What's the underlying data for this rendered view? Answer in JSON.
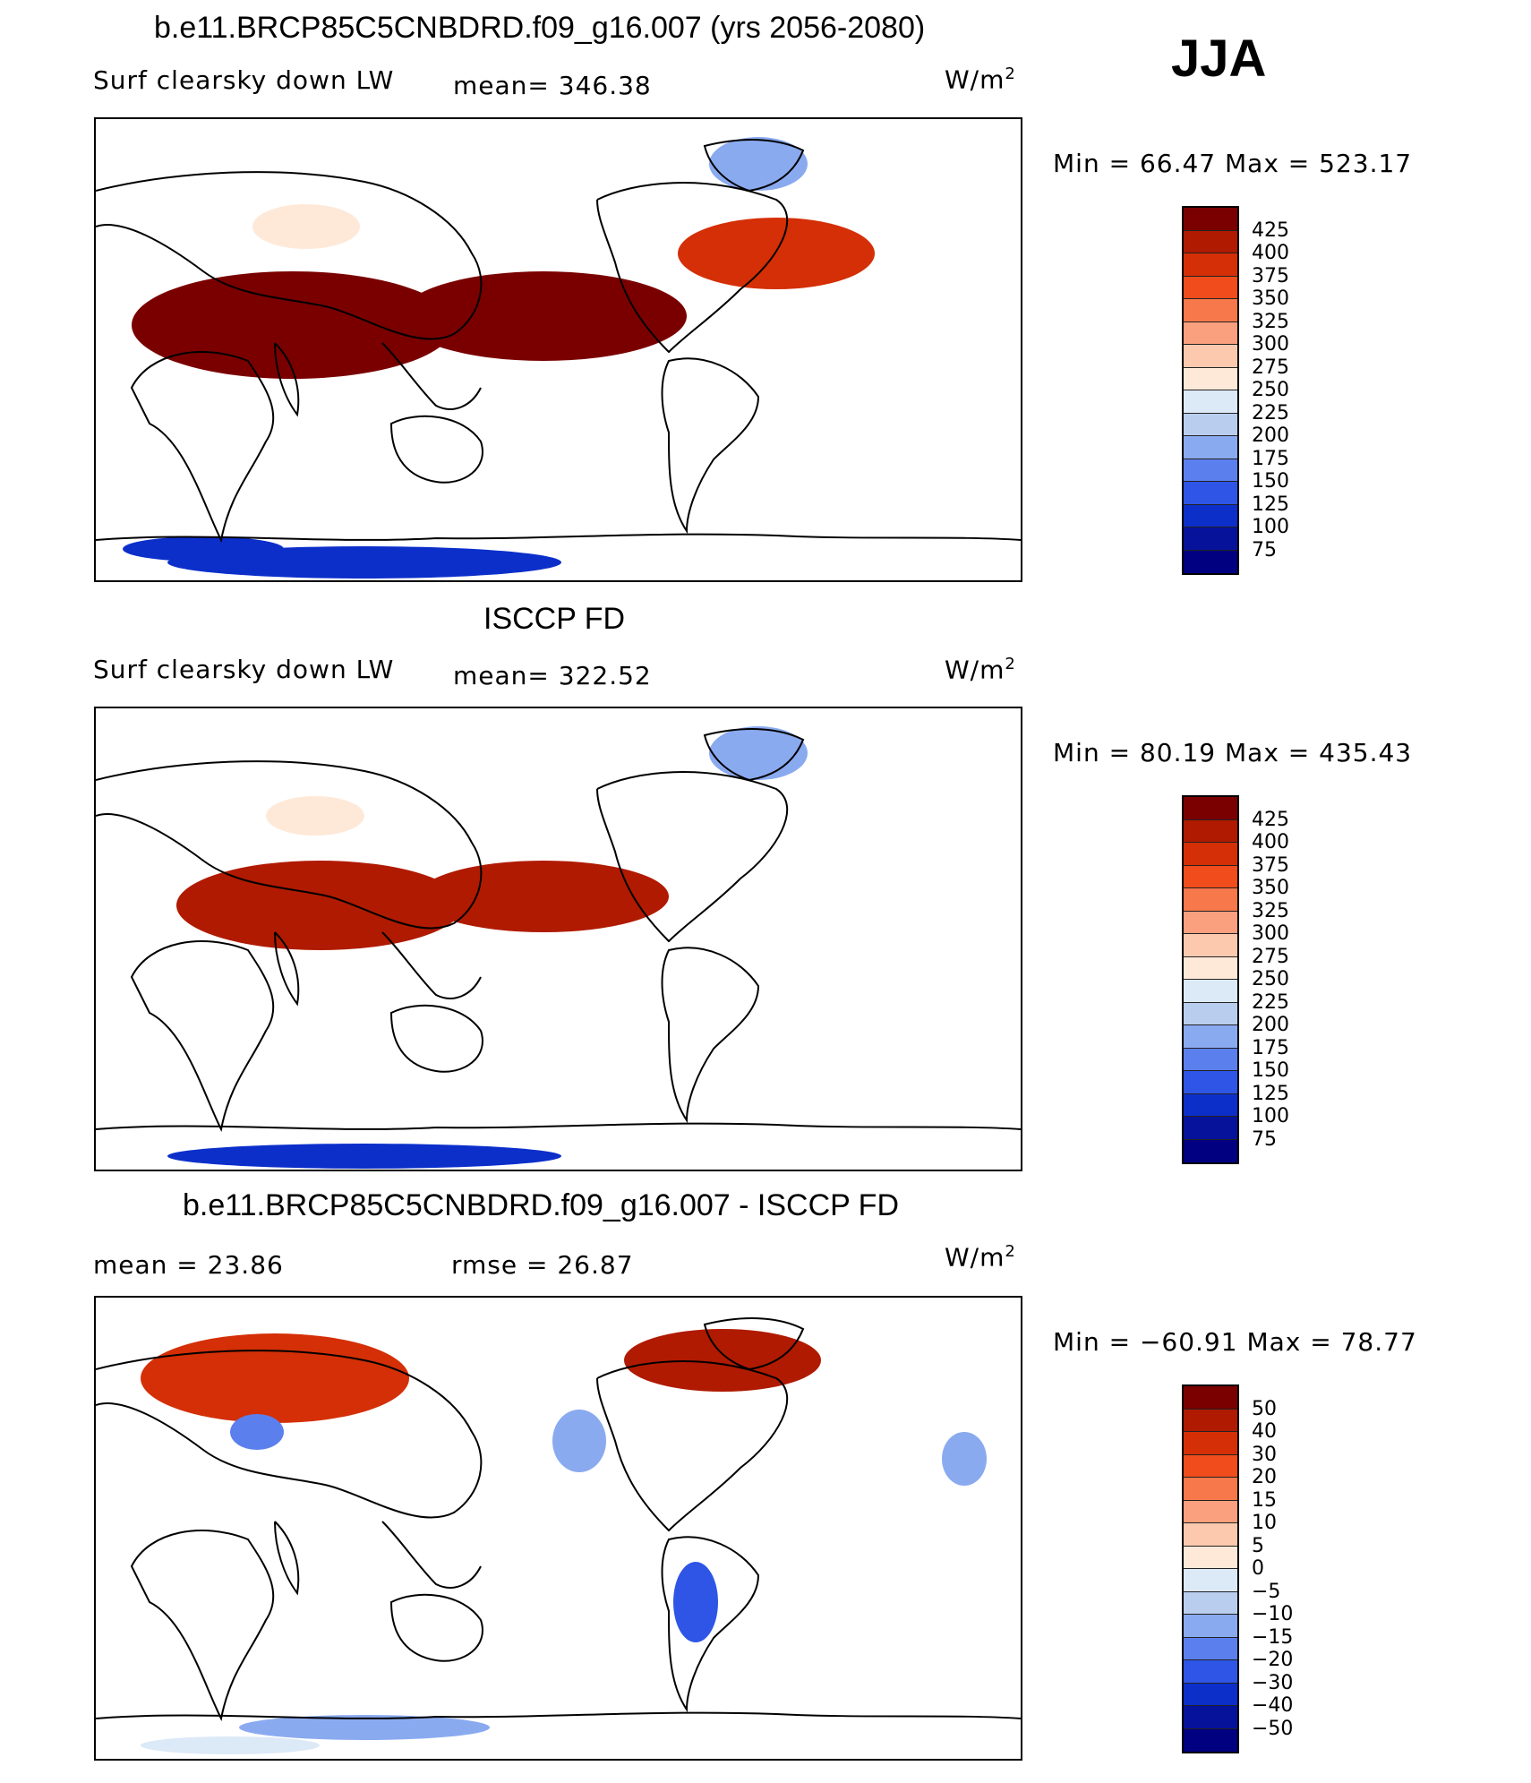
{
  "season": "JJA",
  "panels": [
    {
      "title": "b.e11.BRCP85C5CNBDRD.f09_g16.007 (yrs 2056-2080)",
      "left_label": "Surf clearsky down LW",
      "mid_label": "mean=  346.38",
      "units": "W/m",
      "units_sup": "2",
      "minmax": "Min =   66.47  Max  =  523.17",
      "scale": "absolute",
      "ticks": [
        "425",
        "400",
        "375",
        "350",
        "325",
        "300",
        "275",
        "250",
        "225",
        "200",
        "175",
        "150",
        "125",
        "100",
        "75"
      ]
    },
    {
      "title": "ISCCP FD",
      "left_label": "Surf clearsky down LW",
      "mid_label": "mean=  322.52",
      "units": "W/m",
      "units_sup": "2",
      "minmax": "Min =   80.19  Max  =  435.43",
      "scale": "absolute",
      "ticks": [
        "425",
        "400",
        "375",
        "350",
        "325",
        "300",
        "275",
        "250",
        "225",
        "200",
        "175",
        "150",
        "125",
        "100",
        "75"
      ]
    },
    {
      "title": "b.e11.BRCP85C5CNBDRD.f09_g16.007 - ISCCP FD",
      "left_label": "mean  =    23.86",
      "mid_label": "rmse  =    26.87",
      "units": "W/m",
      "units_sup": "2",
      "minmax": "Min  =  −60.91  Max  =    78.77",
      "scale": "difference",
      "ticks": [
        "50",
        "40",
        "30",
        "20",
        "15",
        "10",
        "5",
        "0",
        "−5",
        "−10",
        "−15",
        "−20",
        "−30",
        "−40",
        "−50"
      ]
    }
  ],
  "colors": {
    "colorbar": [
      "#7a0000",
      "#b01a00",
      "#d42f06",
      "#f04c1c",
      "#f7784a",
      "#fba07e",
      "#fdc9ae",
      "#fee9d9",
      "#dce9f7",
      "#b9cdef",
      "#8aaaf0",
      "#5b80ee",
      "#2e55e6",
      "#0c2fca",
      "#06129a",
      "#000080"
    ]
  }
}
